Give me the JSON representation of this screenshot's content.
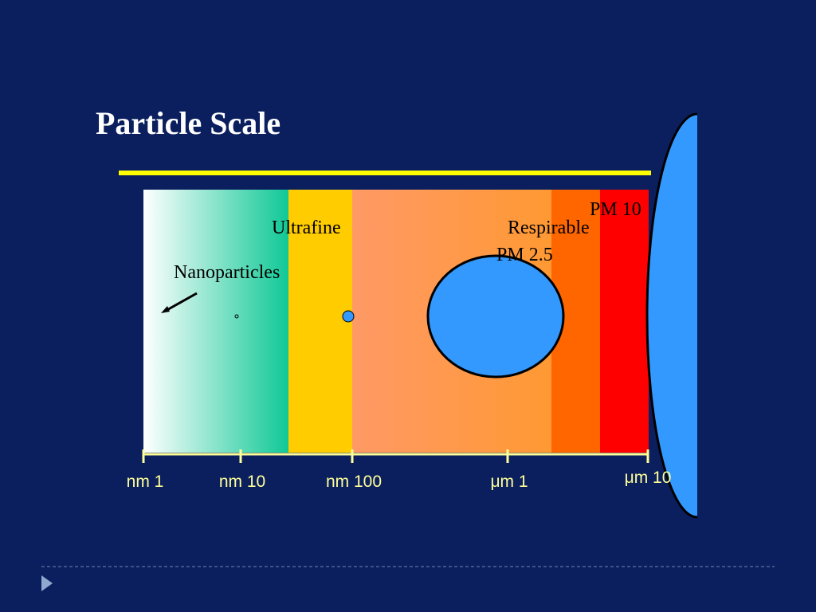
{
  "title": "Particle Scale",
  "regions": {
    "nanoparticles": "Nanoparticles",
    "ultrafine": "Ultrafine",
    "respirable": "Respirable",
    "pm25": "PM 2.5",
    "pm10": "PM 10"
  },
  "scale_labels": [
    "nm 1",
    "nm 10",
    "nm 100",
    "μm 1",
    "μm 10"
  ]
}
